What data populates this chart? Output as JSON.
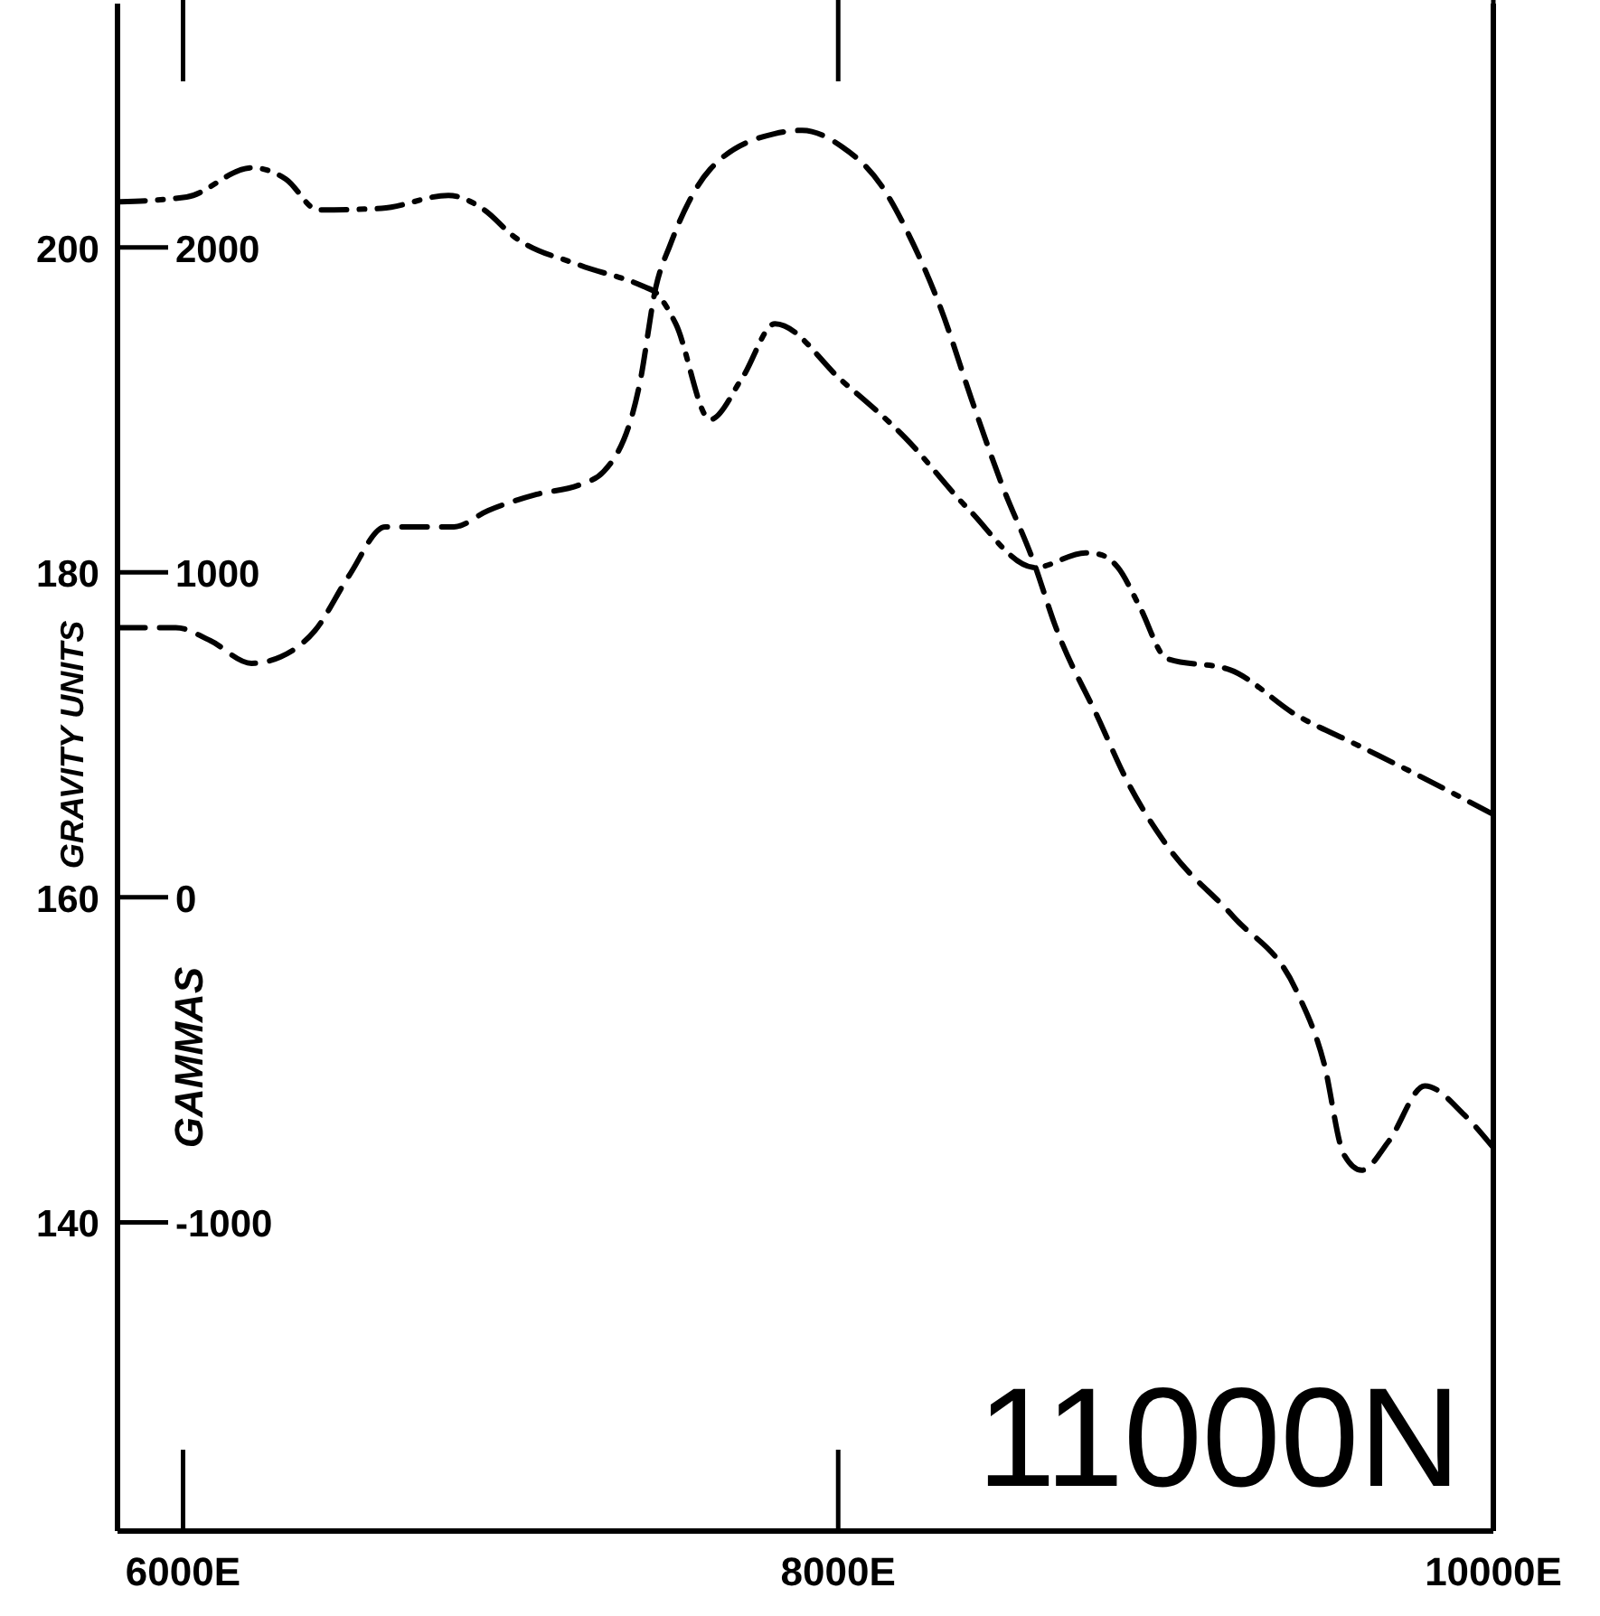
{
  "chart_data": {
    "type": "line",
    "ylabel": "GRAVITY UNITS",
    "y2label": "GAMMAS",
    "annotations": [
      "11000N"
    ],
    "xlim": [
      5800,
      10000
    ],
    "xticks": [
      {
        "value": 6000,
        "label": "6000E"
      },
      {
        "value": 8000,
        "label": "8000E"
      },
      {
        "value": 10000,
        "label": "10000E"
      }
    ],
    "ylim": [
      121,
      215
    ],
    "yticks": [
      140,
      160,
      180,
      200
    ],
    "y2lim": [
      -1950,
      2750
    ],
    "y2ticks": [
      -1000,
      0,
      1000,
      2000
    ],
    "grid": false,
    "marker": "none",
    "series": [
      {
        "color": "#000000",
        "line_style": "dashed",
        "x": [
          5807,
          6011,
          6209,
          6314,
          6413,
          6606,
          6810,
          6920,
          7008,
          7212,
          7405,
          7444,
          7504,
          7609,
          7708,
          7807,
          8011,
          8204,
          8397,
          8601,
          8755,
          8799,
          8854,
          8920,
          9003,
          9196,
          9400,
          9582,
          9791,
          10000
        ],
        "values": [
          202.8,
          203.1,
          204.9,
          204.2,
          202.3,
          202.4,
          203.2,
          202.3,
          200.7,
          198.9,
          197.6,
          197.2,
          195.3,
          189.4,
          192.0,
          195.3,
          191.8,
          188.3,
          183.9,
          180.3,
          181.2,
          181.1,
          180.3,
          177.9,
          174.7,
          174.0,
          171.2,
          169.4,
          167.3,
          165.1
        ]
      },
      {
        "color": "#000000",
        "line_style": "dashed",
        "axis": "y2",
        "x": [
          5807,
          5978,
          6083,
          6209,
          6298,
          6402,
          6507,
          6617,
          6827,
          6931,
          7080,
          7212,
          7284,
          7394,
          7444,
          7488,
          7609,
          7807,
          7890,
          8011,
          8132,
          8215,
          8314,
          8408,
          8496,
          8601,
          8661,
          8799,
          8876,
          9003,
          9207,
          9400,
          9483,
          9543,
          9598,
          9681,
          9791,
          9912,
          10000
        ],
        "values": [
          830,
          830,
          790,
          720,
          740,
          820,
          990,
          1140,
          1140,
          1190,
          1240,
          1270,
          1310,
          1580,
          1880,
          2010,
          2240,
          2350,
          2360,
          2310,
          2190,
          2040,
          1810,
          1530,
          1280,
          1020,
          840,
          540,
          370,
          160,
          -60,
          -290,
          -510,
          -790,
          -840,
          -750,
          -580,
          -670,
          -770
        ]
      }
    ]
  }
}
